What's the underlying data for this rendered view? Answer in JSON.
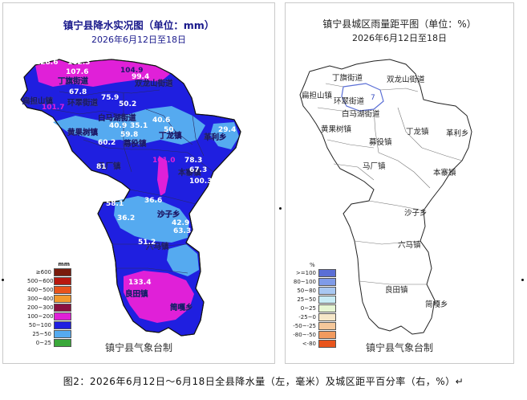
{
  "left_map": {
    "title": "镇宁县降水实况图（单位：mm）",
    "date": "2026年6月12日至18日",
    "credit": "镇宁县气象台制",
    "legend_unit": "mm",
    "legend": [
      {
        "label": "≥600",
        "color": "#7a1b0c"
      },
      {
        "label": "500~600",
        "color": "#b8180f"
      },
      {
        "label": "400~500",
        "color": "#e8541c"
      },
      {
        "label": "300~400",
        "color": "#f29a2e"
      },
      {
        "label": "200~300",
        "color": "#8a1040"
      },
      {
        "label": "100~200",
        "color": "#e020d8"
      },
      {
        "label": "50~100",
        "color": "#1f1fe0"
      },
      {
        "label": "25~50",
        "color": "#55aaf0"
      },
      {
        "label": "0~25",
        "color": "#3aa83a"
      }
    ],
    "place_labels": [
      "丁旗街道",
      "双龙山街道",
      "扁担山镇",
      "环翠街道",
      "黄果树镇",
      "白马湖街道",
      "丁龙镇",
      "革利乡",
      "募役镇",
      "马厂镇",
      "本寨镇",
      "沙子乡",
      "六马镇",
      "良田镇",
      "简嘎乡"
    ],
    "values": [
      "128.6",
      "162.3",
      "104.9",
      "107.6",
      "99.4",
      "67.8",
      "75.9",
      "50.2",
      "101.7",
      "40.9",
      "35.1",
      "40.6",
      "50",
      "29.4",
      "59.8",
      "60.2",
      "101.0",
      "78.3",
      "67.3",
      "100.3",
      "81",
      "58.1",
      "36.6",
      "36.2",
      "42.9",
      "63.3",
      "51.2",
      "133.4"
    ]
  },
  "right_map": {
    "title": "镇宁县城区雨量距平图（单位：%）",
    "date": "2026年6月12日至18日",
    "credit": "镇宁县气象台制",
    "legend_unit": "%",
    "legend": [
      {
        "label": ">=100",
        "color": "#5b6fd6"
      },
      {
        "label": "80~100",
        "color": "#7f9be8"
      },
      {
        "label": "50~80",
        "color": "#a9c8f2"
      },
      {
        "label": "25~50",
        "color": "#c8ecf5"
      },
      {
        "label": "0~25",
        "color": "#e6f6d2"
      },
      {
        "label": "-25~0",
        "color": "#f6e7c8"
      },
      {
        "label": "-50~-25",
        "color": "#f5c79a"
      },
      {
        "label": "-80~-50",
        "color": "#f29a5e"
      },
      {
        "label": "<-80",
        "color": "#e8541c"
      }
    ],
    "place_labels": [
      "丁旗街道",
      "双龙山街道",
      "扁担山镇",
      "环翠街道",
      "白马湖街道",
      "黄果树镇",
      "丁龙镇",
      "革利乡",
      "募役镇",
      "马厂镇",
      "本寨镇",
      "沙子乡",
      "六马镇",
      "良田镇",
      "简嘎乡"
    ],
    "value_label": "7"
  },
  "caption": "图2：2026年6月12日～6月18日全县降水量（左，毫米）及城区距平百分率（右，%）↵"
}
